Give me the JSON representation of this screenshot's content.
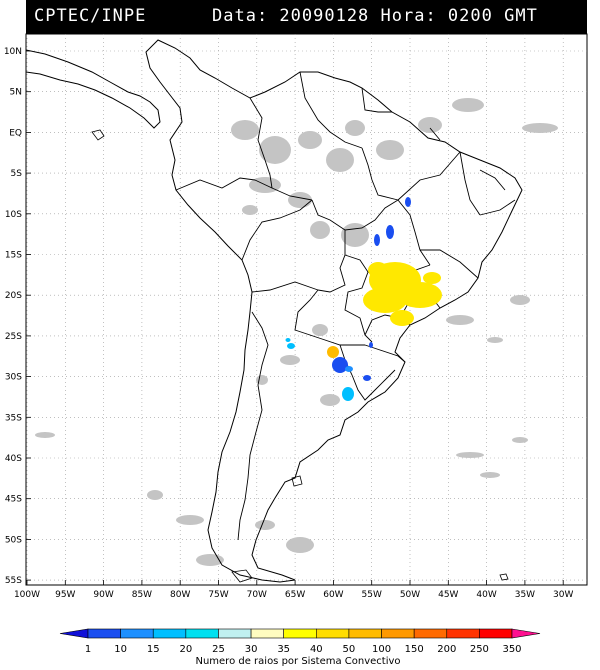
{
  "header": {
    "source": "CPTEC/INPE",
    "datetime": "Data: 20090128 Hora: 0200 GMT"
  },
  "latitude_labels": [
    "10N",
    "5N",
    "EQ",
    "5S",
    "10S",
    "15S",
    "20S",
    "25S",
    "30S",
    "35S",
    "40S",
    "45S",
    "50S",
    "55S"
  ],
  "longitude_labels": [
    "100W",
    "95W",
    "90W",
    "85W",
    "80W",
    "75W",
    "70W",
    "65W",
    "60W",
    "55W",
    "50W",
    "45W",
    "40W",
    "35W",
    "30W"
  ],
  "colorbar": {
    "tick_labels": [
      "1",
      "10",
      "15",
      "20",
      "25",
      "30",
      "35",
      "40",
      "50",
      "100",
      "150",
      "200",
      "250",
      "350"
    ],
    "colors": [
      "#1010d8",
      "#1a4ef0",
      "#1e90ff",
      "#00bfff",
      "#00e0f0",
      "#c0f0f0",
      "#fffcc0",
      "#ffff00",
      "#ffdd00",
      "#ffbb00",
      "#ff9900",
      "#ff6a00",
      "#ff3300",
      "#ff0000",
      "#ff1090"
    ],
    "title": "Numero de raios por Sistema Convectivo"
  },
  "legend_colors": {
    "cloud": "#c4c4c4",
    "background": "#ffffff",
    "header": "#000000"
  }
}
